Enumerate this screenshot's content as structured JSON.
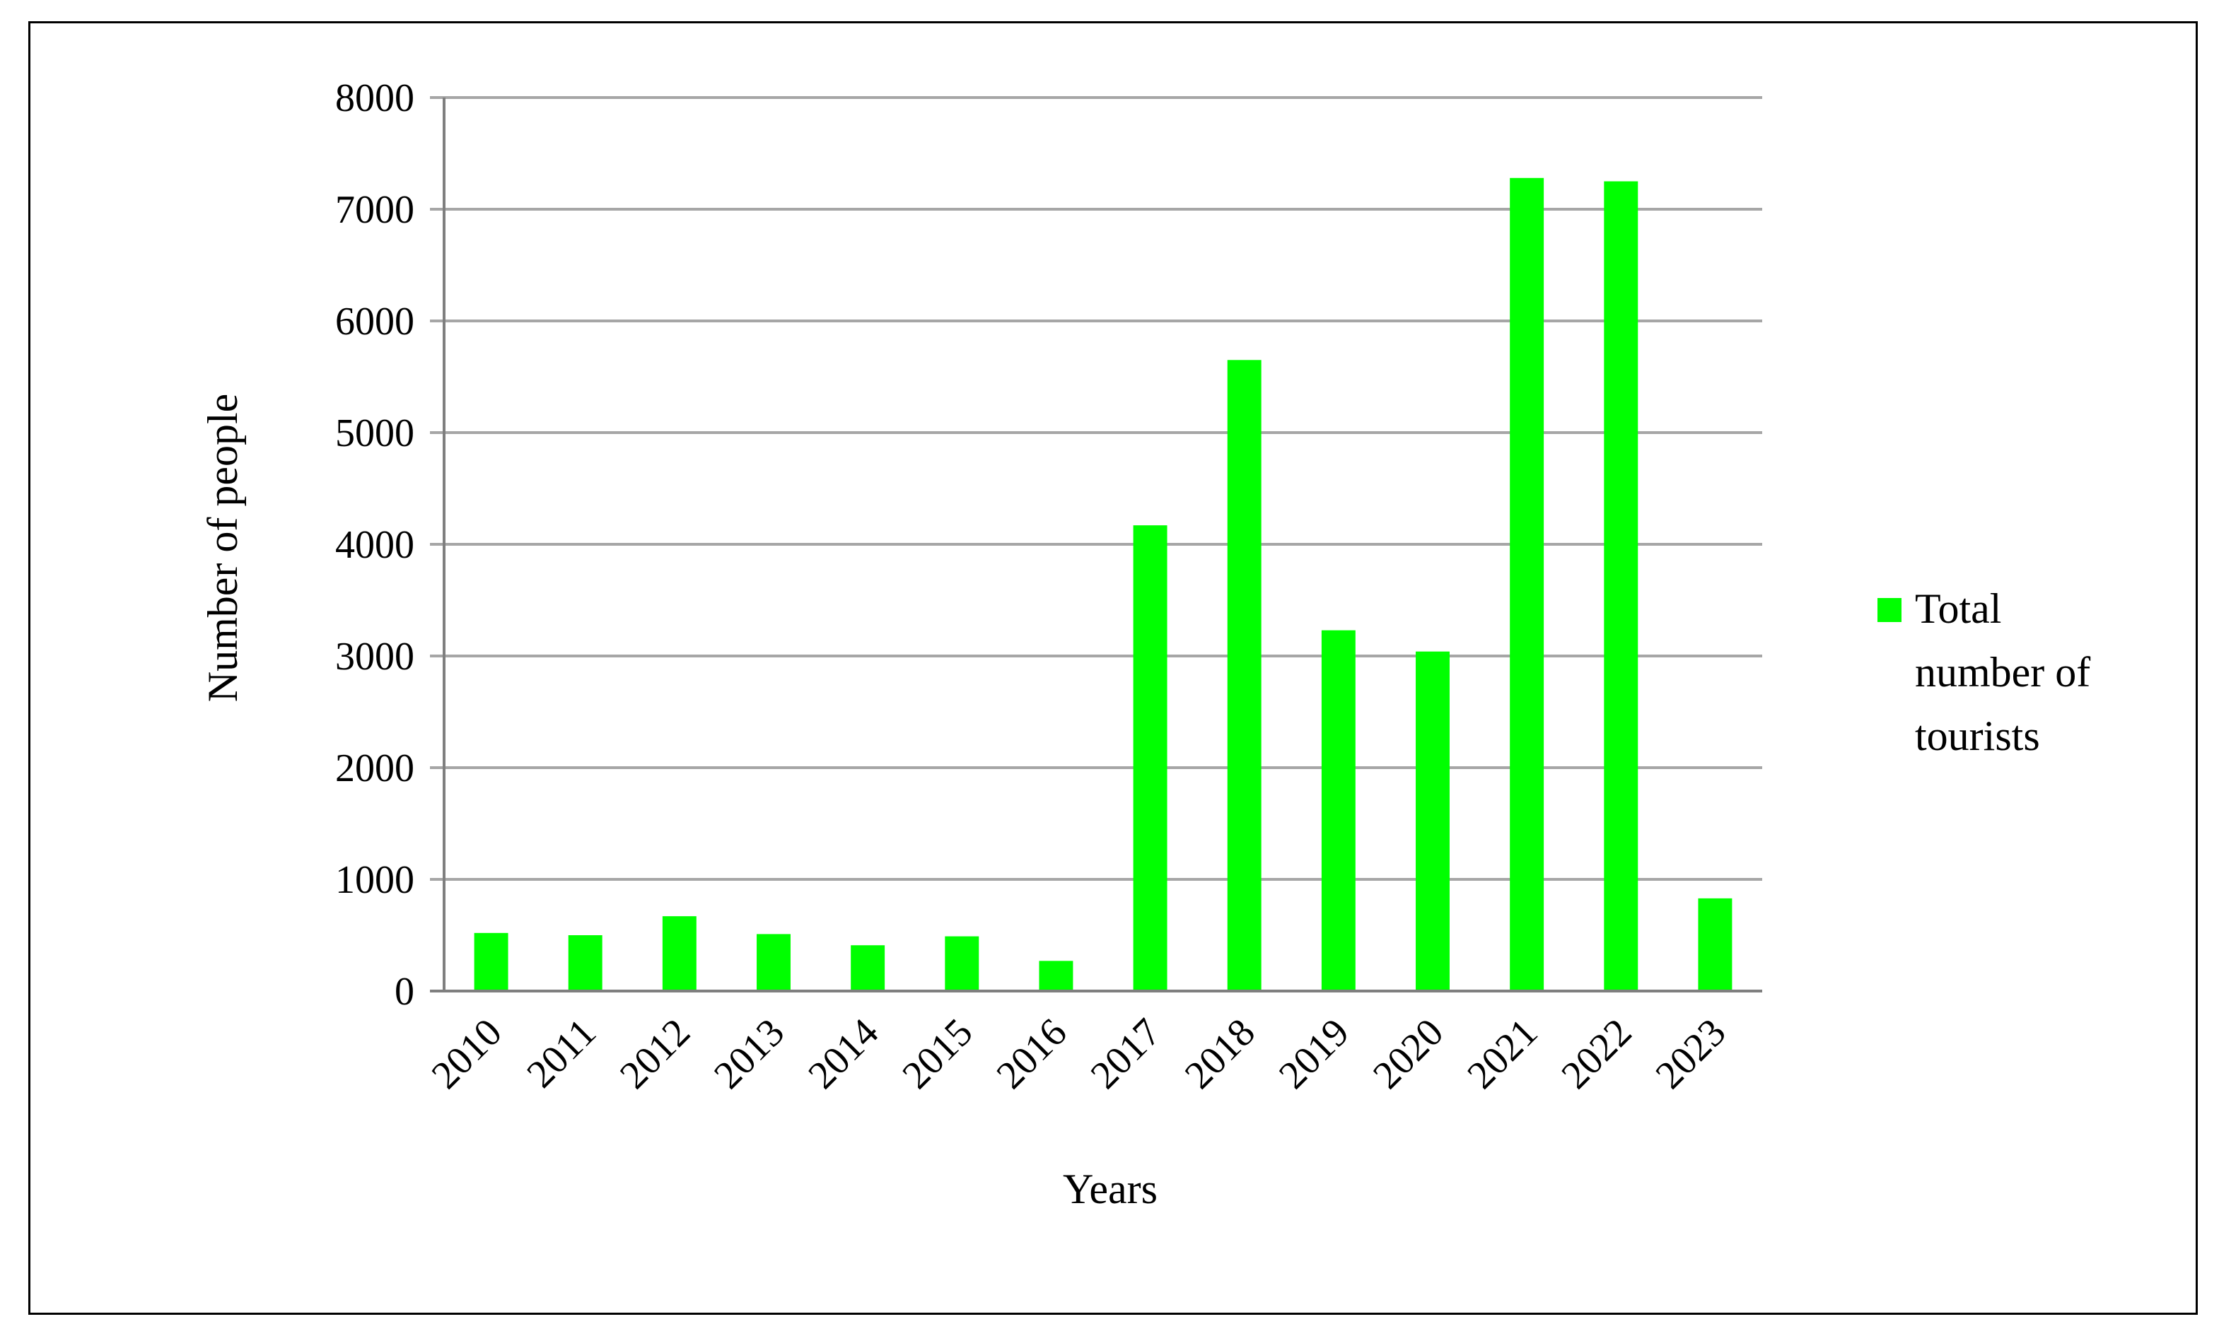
{
  "chart_data": {
    "type": "bar",
    "title": "",
    "xlabel": "Years",
    "ylabel": "Number of people",
    "categories": [
      "2010",
      "2011",
      "2012",
      "2013",
      "2014",
      "2015",
      "2016",
      "2017",
      "2018",
      "2019",
      "2020",
      "2021",
      "2022",
      "2023"
    ],
    "series": [
      {
        "name": "Total number of tourists",
        "color": "#00ff00",
        "values": [
          520,
          500,
          670,
          510,
          410,
          490,
          270,
          4170,
          5650,
          3230,
          3040,
          7280,
          7250,
          830
        ]
      }
    ],
    "ylim": [
      0,
      8000
    ],
    "yticks": [
      0,
      1000,
      2000,
      3000,
      4000,
      5000,
      6000,
      7000,
      8000
    ],
    "grid": "horizontal",
    "legend_position": "right",
    "legend_lines": [
      "Total",
      "number of",
      "tourists"
    ],
    "colors": {
      "gridline": "#a6a6a6",
      "axis": "#7f7f7f",
      "border": "#000000"
    }
  }
}
